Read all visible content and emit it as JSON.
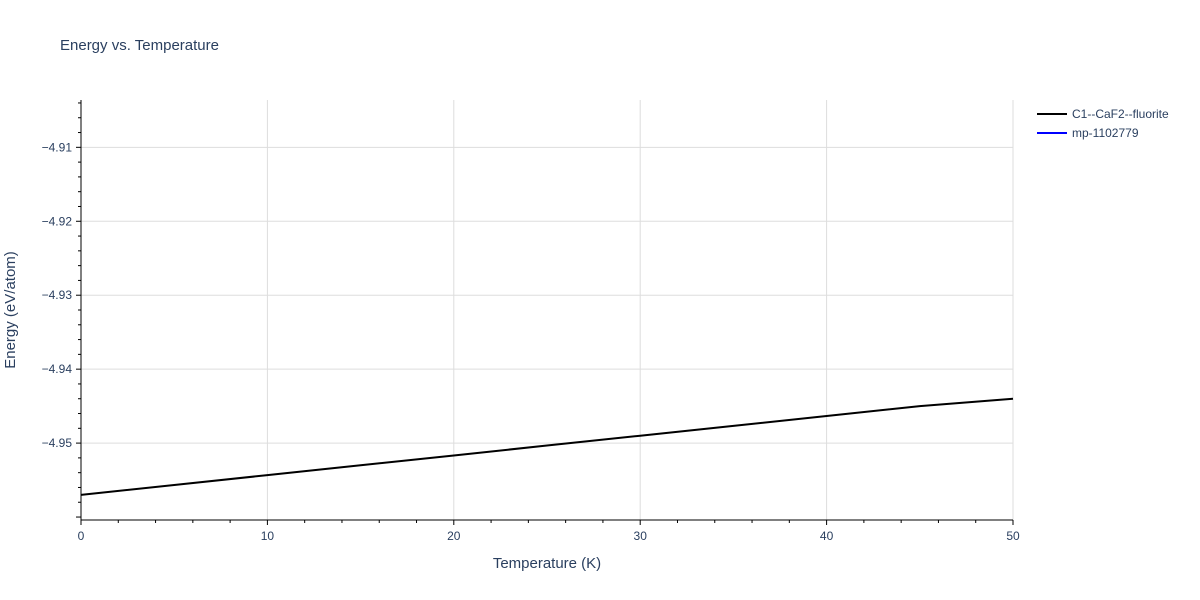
{
  "chart_data": {
    "type": "line",
    "title": "Energy vs. Temperature",
    "xlabel": "Temperature (K)",
    "ylabel": "Energy (eV/atom)",
    "xlim": [
      0,
      50
    ],
    "ylim": [
      -4.9604,
      -4.9036
    ],
    "x_ticks": [
      0,
      10,
      20,
      30,
      40,
      50
    ],
    "x_tick_labels": [
      "0",
      "10",
      "20",
      "30",
      "40",
      "50"
    ],
    "y_ticks": [
      -4.95,
      -4.94,
      -4.93,
      -4.92,
      -4.91
    ],
    "y_tick_labels": [
      "−4.95",
      "−4.94",
      "−4.93",
      "−4.92",
      "−4.91"
    ],
    "grid": true,
    "legend_position": "top-right",
    "series": [
      {
        "name": "C1--CaF2--fluorite",
        "color": "#000000",
        "x": [
          0,
          5,
          10,
          15,
          20,
          25,
          30,
          35,
          40,
          45,
          50
        ],
        "y": [
          -4.957,
          -4.95567,
          -4.95433,
          -4.953,
          -4.95167,
          -4.95033,
          -4.949,
          -4.94767,
          -4.94633,
          -4.945,
          -4.944
        ]
      },
      {
        "name": "mp-1102779",
        "color": "#0000ff",
        "x": [],
        "y": []
      }
    ]
  }
}
